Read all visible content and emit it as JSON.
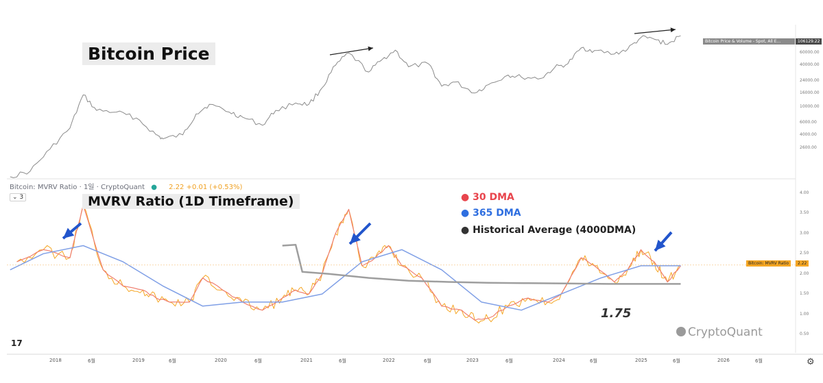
{
  "titles": {
    "price": "Bitcoin Price",
    "mvrv": "MVRV Ratio (1D Timeframe)"
  },
  "toolbar": {
    "label": "Bitcoin: MVRV Ratio · 1일 · CryptoQuant",
    "status_dot": "●",
    "value": "2.22 +0.01 (+0.53%)",
    "collapse_label": "⌄ 3"
  },
  "legend": [
    {
      "dot": "●",
      "label": "30 DMA",
      "color": "#e8454d"
    },
    {
      "dot": "●",
      "label": "365 DMA",
      "color": "#2f6fe0"
    },
    {
      "dot": "●",
      "label": "Historical Average (4000DMA)",
      "color": "#333333"
    }
  ],
  "annotation": "1.75",
  "brand": "CryptoQuant",
  "tv_logo": "17",
  "gear_icon": "⚙",
  "badges": {
    "price_series": "Bitcoin Price & Volume - Spot, All E...",
    "price_value": "106129.22",
    "mvrv_series": "Bitcoin: MVRV Ratio",
    "mvrv_value": "2.22"
  },
  "colors": {
    "price_line": "#8a8a8a",
    "mvrv_raw": "#f5a623",
    "dma30": "#ef7f6f",
    "dma365": "#7f9fe6",
    "hist_avg": "#9e9e9e",
    "arrow": "#2255cc"
  },
  "chart_data": [
    {
      "type": "line",
      "title": "Bitcoin Price",
      "yscale": "log",
      "yticks": [
        "2600.00",
        "4000.00",
        "6000.00",
        "10000.00",
        "16000.00",
        "24000.00",
        "40000.00",
        "60000.00",
        "106129.22"
      ],
      "series": [
        {
          "name": "Bitcoin Price & Volume - Spot, All E...",
          "x": [
            "2017-01",
            "2017-04",
            "2017-07",
            "2017-10",
            "2017-12",
            "2018-02",
            "2018-05",
            "2018-08",
            "2018-11",
            "2018-12",
            "2019-03",
            "2019-05",
            "2019-07",
            "2019-10",
            "2019-12",
            "2020-03",
            "2020-05",
            "2020-08",
            "2020-10",
            "2020-12",
            "2021-02",
            "2021-04",
            "2021-07",
            "2021-09",
            "2021-11",
            "2022-01",
            "2022-04",
            "2022-06",
            "2022-08",
            "2022-11",
            "2023-01",
            "2023-04",
            "2023-06",
            "2023-09",
            "2023-11",
            "2024-01",
            "2024-03",
            "2024-05",
            "2024-08",
            "2024-10",
            "2024-12",
            "2025-02",
            "2025-04",
            "2025-06"
          ],
          "values": [
            1000,
            1200,
            2500,
            5000,
            15000,
            9000,
            8500,
            7000,
            4000,
            3500,
            4000,
            8000,
            11000,
            8500,
            7200,
            5500,
            9000,
            11500,
            11000,
            19000,
            40000,
            60000,
            32000,
            48000,
            66000,
            38000,
            42000,
            20000,
            23000,
            16000,
            21000,
            29000,
            27000,
            26000,
            37000,
            42000,
            71000,
            65000,
            58000,
            68000,
            100000,
            95000,
            80000,
            106129.22
          ]
        }
      ]
    },
    {
      "type": "line",
      "title": "MVRV Ratio (1D Timeframe)",
      "xlabels": [
        "2018",
        "6월",
        "2019",
        "6월",
        "2020",
        "6월",
        "2021",
        "6월",
        "2022",
        "6월",
        "2023",
        "6월",
        "2024",
        "6월",
        "2025",
        "6월",
        "2026",
        "6월"
      ],
      "yticks": [
        "0.50",
        "1.00",
        "1.50",
        "2.00",
        "2.50",
        "3.00",
        "3.50",
        "4.00"
      ],
      "series": [
        {
          "name": "30 DMA",
          "x": [
            "2017-02",
            "2017-06",
            "2017-10",
            "2017-12",
            "2018-03",
            "2018-06",
            "2018-09",
            "2018-11",
            "2019-01",
            "2019-04",
            "2019-06",
            "2019-09",
            "2019-12",
            "2020-03",
            "2020-06",
            "2020-08",
            "2020-10",
            "2020-12",
            "2021-02",
            "2021-04",
            "2021-06",
            "2021-08",
            "2021-10",
            "2021-12",
            "2022-03",
            "2022-06",
            "2022-09",
            "2022-11",
            "2023-01",
            "2023-04",
            "2023-07",
            "2023-10",
            "2023-12",
            "2024-03",
            "2024-05",
            "2024-08",
            "2024-10",
            "2024-12",
            "2025-02",
            "2025-04",
            "2025-06"
          ],
          "values": [
            2.3,
            2.6,
            2.4,
            3.7,
            2.1,
            1.7,
            1.6,
            1.4,
            1.3,
            1.3,
            1.9,
            1.6,
            1.3,
            1.1,
            1.4,
            1.6,
            1.5,
            2.0,
            3.0,
            3.6,
            2.2,
            2.4,
            2.7,
            2.2,
            1.9,
            1.2,
            1.1,
            0.85,
            0.9,
            1.2,
            1.4,
            1.3,
            1.5,
            2.4,
            2.2,
            1.8,
            2.1,
            2.6,
            2.3,
            1.8,
            2.2
          ]
        },
        {
          "name": "365 DMA",
          "x": [
            "2017-01",
            "2017-06",
            "2017-12",
            "2018-06",
            "2018-12",
            "2019-06",
            "2019-12",
            "2020-06",
            "2020-12",
            "2021-06",
            "2021-12",
            "2022-06",
            "2022-12",
            "2023-06",
            "2023-12",
            "2024-06",
            "2024-12",
            "2025-06"
          ],
          "values": [
            2.1,
            2.5,
            2.7,
            2.3,
            1.7,
            1.2,
            1.3,
            1.3,
            1.5,
            2.3,
            2.6,
            2.1,
            1.3,
            1.1,
            1.5,
            1.9,
            2.2,
            2.2
          ]
        },
        {
          "name": "Historical Average (4000DMA)",
          "x": [
            "2020-06",
            "2020-08",
            "2020-09",
            "2021-01",
            "2021-07",
            "2022-01",
            "2022-07",
            "2023-01",
            "2023-07",
            "2024-01",
            "2024-07",
            "2025-01",
            "2025-06"
          ],
          "values": [
            2.7,
            2.72,
            2.05,
            2.0,
            1.9,
            1.83,
            1.8,
            1.78,
            1.77,
            1.76,
            1.75,
            1.75,
            1.75
          ]
        }
      ]
    }
  ]
}
